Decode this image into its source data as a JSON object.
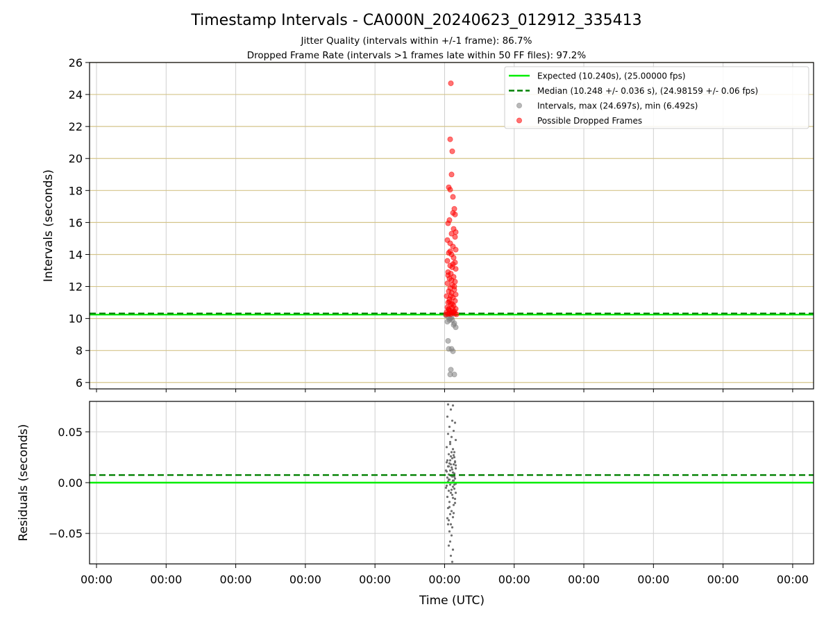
{
  "chart_data": [
    {
      "panel": "intervals",
      "type": "scatter",
      "title": "Timestamp Intervals - CA000N_20240623_012912_335413",
      "subtitle_lines": [
        "Jitter Quality (intervals within +/-1 frame): 86.7%",
        "Dropped Frame Rate (intervals >1 frames late within 50 FF files): 97.2%"
      ],
      "ylabel": "Intervals (seconds)",
      "ylim": [
        5.6,
        26
      ],
      "yticks": [
        "6",
        "8",
        "10",
        "12",
        "14",
        "16",
        "18",
        "20",
        "22",
        "24",
        "26"
      ],
      "grid": true,
      "legend_position": "top-right",
      "legend": [
        {
          "label": "Expected (10.240s), (25.00000 fps)",
          "style": "solid-line",
          "color": "#00ee00"
        },
        {
          "label": "Median (10.248 +/- 0.036 s), (24.98159 +/- 0.06 fps)",
          "style": "dashed-line",
          "color": "#008000"
        },
        {
          "label": "Intervals, max (24.697s), min (6.492s)",
          "style": "marker",
          "color": "#808080"
        },
        {
          "label": "Possible Dropped Frames",
          "style": "marker",
          "color": "#ff0000"
        }
      ],
      "expected_line": 10.24,
      "median_line": 10.248,
      "series": [
        {
          "name": "Intervals, max (24.697s), min (6.492s)",
          "color": "#808080",
          "points": [
            [
              5.02,
              10.2
            ],
            [
              5.05,
              10.1
            ],
            [
              5.08,
              10.0
            ],
            [
              5.11,
              9.9
            ],
            [
              5.14,
              9.7
            ],
            [
              5.04,
              9.8
            ],
            [
              5.1,
              10.05
            ],
            [
              5.16,
              9.45
            ],
            [
              5.13,
              9.6
            ],
            [
              5.07,
              9.9
            ],
            [
              5.05,
              8.6
            ],
            [
              5.06,
              8.1
            ],
            [
              5.1,
              8.1
            ],
            [
              5.12,
              7.95
            ],
            [
              5.09,
              6.8
            ],
            [
              5.08,
              6.5
            ],
            [
              5.14,
              6.5
            ]
          ]
        },
        {
          "name": "Possible Dropped Frames",
          "color": "#ff0000",
          "points": [
            [
              5.09,
              24.7
            ],
            [
              5.08,
              21.2
            ],
            [
              5.11,
              20.45
            ],
            [
              5.1,
              19.0
            ],
            [
              5.06,
              18.2
            ],
            [
              5.08,
              18.05
            ],
            [
              5.12,
              17.6
            ],
            [
              5.14,
              16.85
            ],
            [
              5.12,
              16.6
            ],
            [
              5.15,
              16.5
            ],
            [
              5.07,
              16.15
            ],
            [
              5.05,
              15.95
            ],
            [
              5.13,
              15.6
            ],
            [
              5.16,
              15.4
            ],
            [
              5.1,
              15.3
            ],
            [
              5.04,
              14.9
            ],
            [
              5.15,
              15.1
            ],
            [
              5.08,
              14.7
            ],
            [
              5.12,
              14.5
            ],
            [
              5.16,
              14.3
            ],
            [
              5.06,
              14.1
            ],
            [
              5.1,
              14.0
            ],
            [
              5.13,
              13.8
            ],
            [
              5.04,
              13.6
            ],
            [
              5.15,
              13.5
            ],
            [
              5.08,
              13.3
            ],
            [
              5.11,
              13.2
            ],
            [
              5.16,
              13.1
            ],
            [
              5.05,
              12.9
            ],
            [
              5.09,
              12.8
            ],
            [
              5.13,
              12.6
            ],
            [
              5.07,
              12.5
            ],
            [
              5.15,
              12.3
            ],
            [
              5.04,
              12.2
            ],
            [
              5.11,
              12.1
            ],
            [
              5.08,
              11.9
            ],
            [
              5.14,
              11.8
            ],
            [
              5.06,
              11.7
            ],
            [
              5.1,
              11.6
            ],
            [
              5.16,
              11.5
            ],
            [
              5.03,
              11.4
            ],
            [
              5.12,
              11.3
            ],
            [
              5.07,
              11.2
            ],
            [
              5.15,
              11.1
            ],
            [
              5.05,
              11.0
            ],
            [
              5.09,
              10.9
            ],
            [
              5.13,
              10.8
            ],
            [
              5.04,
              10.7
            ],
            [
              5.11,
              10.65
            ],
            [
              5.16,
              10.6
            ],
            [
              5.06,
              10.55
            ],
            [
              5.08,
              10.5
            ],
            [
              5.14,
              10.45
            ],
            [
              5.03,
              10.4
            ],
            [
              5.1,
              10.38
            ],
            [
              5.12,
              10.35
            ],
            [
              5.07,
              10.32
            ],
            [
              5.15,
              10.3
            ],
            [
              5.05,
              10.28
            ],
            [
              5.09,
              10.27
            ],
            [
              5.17,
              10.26
            ],
            [
              5.02,
              10.26
            ],
            [
              5.13,
              10.4
            ],
            [
              5.06,
              10.6
            ],
            [
              5.11,
              10.9
            ],
            [
              5.09,
              11.4
            ],
            [
              5.14,
              12.0
            ],
            [
              5.05,
              12.7
            ],
            [
              5.12,
              13.4
            ],
            [
              5.08,
              14.2
            ],
            [
              5.1,
              12.4
            ],
            [
              5.07,
              11.05
            ]
          ]
        }
      ]
    },
    {
      "panel": "residuals",
      "type": "scatter",
      "xlabel": "Time (UTC)",
      "ylabel": "Residuals (seconds)",
      "ylim": [
        -0.08,
        0.08
      ],
      "yticks": [
        "−0.05",
        "0.00",
        "0.05"
      ],
      "xlim": [
        -0.1,
        10.3
      ],
      "xticks": [
        "00:00",
        "00:00",
        "00:00",
        "00:00",
        "00:00",
        "00:00",
        "00:00",
        "00:00",
        "00:00",
        "00:00",
        "00:00"
      ],
      "grid": true,
      "expected_line": 0.0,
      "median_line": 0.0075,
      "series": [
        {
          "name": "Residuals",
          "color": "#707070",
          "points": [
            [
              5.05,
              0.077
            ],
            [
              5.12,
              0.076
            ],
            [
              5.09,
              0.072
            ],
            [
              5.04,
              0.065
            ],
            [
              5.11,
              0.061
            ],
            [
              5.15,
              0.059
            ],
            [
              5.07,
              0.055
            ],
            [
              5.13,
              0.051
            ],
            [
              5.05,
              0.048
            ],
            [
              5.1,
              0.045
            ],
            [
              5.16,
              0.042
            ],
            [
              5.08,
              0.038
            ],
            [
              5.03,
              0.035
            ],
            [
              5.12,
              0.033
            ],
            [
              5.14,
              0.03
            ],
            [
              5.06,
              0.028
            ],
            [
              5.09,
              0.026
            ],
            [
              5.11,
              0.024
            ],
            [
              5.04,
              0.022
            ],
            [
              5.15,
              0.021
            ],
            [
              5.07,
              0.019
            ],
            [
              5.13,
              0.018
            ],
            [
              5.05,
              0.016
            ],
            [
              5.1,
              0.015
            ],
            [
              5.16,
              0.014
            ],
            [
              5.08,
              0.012
            ],
            [
              5.03,
              0.011
            ],
            [
              5.12,
              0.01
            ],
            [
              5.14,
              0.009
            ],
            [
              5.06,
              0.008
            ],
            [
              5.09,
              0.007
            ],
            [
              5.11,
              0.006
            ],
            [
              5.04,
              0.005
            ],
            [
              5.15,
              0.004
            ],
            [
              5.07,
              0.003
            ],
            [
              5.13,
              0.002
            ],
            [
              5.05,
              0.001
            ],
            [
              5.1,
              0.0
            ],
            [
              5.16,
              -0.001
            ],
            [
              5.08,
              -0.002
            ],
            [
              5.03,
              -0.003
            ],
            [
              5.12,
              -0.004
            ],
            [
              5.14,
              -0.006
            ],
            [
              5.06,
              -0.008
            ],
            [
              5.09,
              -0.01
            ],
            [
              5.11,
              -0.012
            ],
            [
              5.04,
              -0.014
            ],
            [
              5.15,
              -0.016
            ],
            [
              5.07,
              -0.019
            ],
            [
              5.13,
              -0.022
            ],
            [
              5.05,
              -0.025
            ],
            [
              5.1,
              -0.028
            ],
            [
              5.08,
              -0.031
            ],
            [
              5.12,
              -0.034
            ],
            [
              5.06,
              -0.037
            ],
            [
              5.09,
              -0.041
            ],
            [
              5.11,
              -0.044
            ],
            [
              5.07,
              -0.048
            ],
            [
              5.1,
              -0.052
            ],
            [
              5.08,
              -0.058
            ],
            [
              5.06,
              -0.062
            ],
            [
              5.12,
              -0.066
            ],
            [
              5.09,
              -0.072
            ],
            [
              5.11,
              -0.078
            ],
            [
              5.14,
              0.025
            ],
            [
              5.15,
              0.02
            ],
            [
              5.16,
              0.017
            ],
            [
              5.02,
              0.012
            ],
            [
              5.02,
              -0.005
            ],
            [
              5.16,
              -0.01
            ],
            [
              5.15,
              -0.02
            ],
            [
              5.03,
              0.02
            ],
            [
              5.14,
              0.006
            ],
            [
              5.13,
              -0.03
            ],
            [
              5.04,
              -0.035
            ],
            [
              5.08,
              0.04
            ],
            [
              5.1,
              0.03
            ],
            [
              5.06,
              0.003
            ],
            [
              5.12,
              -0.015
            ],
            [
              5.09,
              0.018
            ],
            [
              5.07,
              -0.024
            ],
            [
              5.11,
              0.013
            ],
            [
              5.05,
              -0.041
            ],
            [
              5.13,
              0.027
            ],
            [
              5.08,
              0.022
            ],
            [
              5.1,
              -0.007
            ],
            [
              5.12,
              0.002
            ],
            [
              5.06,
              0.016
            ],
            [
              5.14,
              -0.002
            ]
          ]
        }
      ]
    }
  ]
}
